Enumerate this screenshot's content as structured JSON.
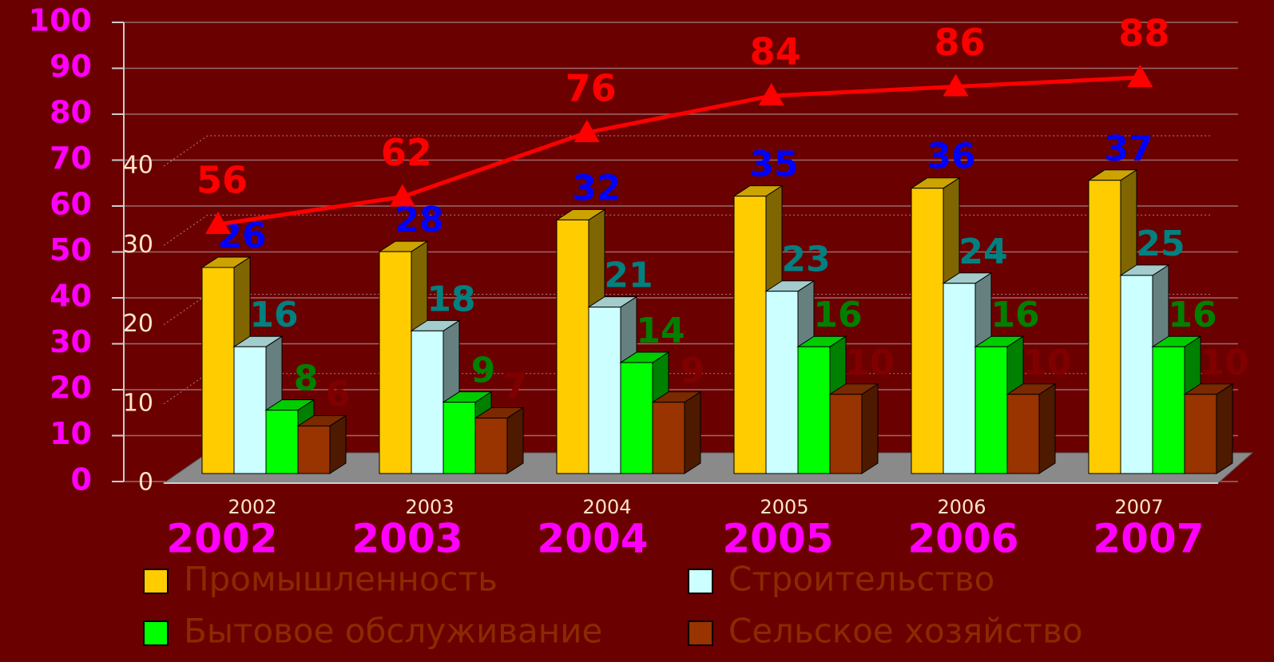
{
  "chart_data": [
    {
      "type": "bar3d",
      "categories": [
        "2002",
        "2003",
        "2004",
        "2005",
        "2006",
        "2007"
      ],
      "series": [
        {
          "name": "Промышленность",
          "color": "#ffcc00",
          "label_color": "#0000ff",
          "values": [
            26,
            28,
            32,
            35,
            36,
            37
          ]
        },
        {
          "name": "Строительство",
          "color": "#ccffff",
          "label_color": "#008080",
          "values": [
            16,
            18,
            21,
            23,
            24,
            25
          ]
        },
        {
          "name": "Бытовое обслуживание",
          "color": "#00ff00",
          "label_color": "#008000",
          "values": [
            8,
            9,
            14,
            16,
            16,
            16
          ]
        },
        {
          "name": "Сельское хозяйство",
          "color": "#993300",
          "label_color": "#800000",
          "values": [
            6,
            7,
            9,
            10,
            10,
            10
          ]
        }
      ],
      "ylim": [
        0,
        40
      ],
      "yticks": [
        0,
        10,
        20,
        30,
        40
      ],
      "grid": true,
      "legend": "bottom"
    },
    {
      "type": "line",
      "categories": [
        "2002",
        "2003",
        "2004",
        "2005",
        "2006",
        "2007"
      ],
      "series": [
        {
          "color": "#ff0000",
          "marker": "triangle",
          "values": [
            56,
            62,
            76,
            84,
            86,
            88
          ]
        }
      ],
      "ylim": [
        0,
        100
      ],
      "yticks": [
        0,
        10,
        20,
        30,
        40,
        50,
        60,
        70,
        80,
        90,
        100
      ],
      "grid": true
    }
  ]
}
